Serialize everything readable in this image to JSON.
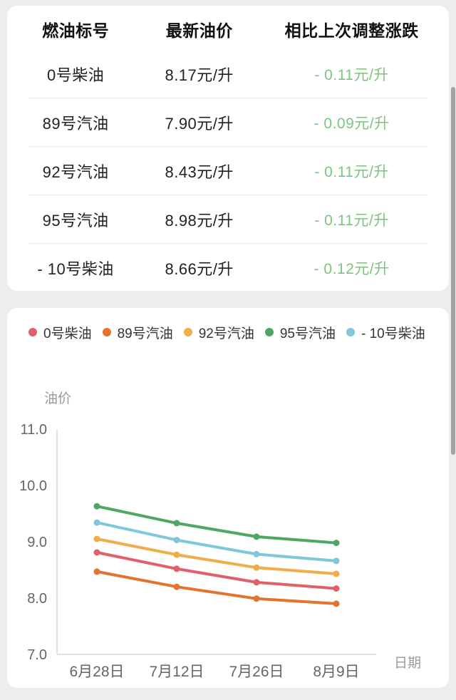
{
  "table": {
    "headers": {
      "grade": "燃油标号",
      "price": "最新油价",
      "change": "相比上次调整涨跌"
    },
    "rows": [
      {
        "grade": "0号柴油",
        "price": "8.17元/升",
        "change": "- 0.11元/升"
      },
      {
        "grade": "89号汽油",
        "price": "7.90元/升",
        "change": "- 0.09元/升"
      },
      {
        "grade": "92号汽油",
        "price": "8.43元/升",
        "change": "- 0.11元/升"
      },
      {
        "grade": "95号汽油",
        "price": "8.98元/升",
        "change": "- 0.11元/升"
      },
      {
        "grade": "- 10号柴油",
        "price": "8.66元/升",
        "change": "- 0.12元/升"
      }
    ],
    "change_color": "#7ec47f"
  },
  "legend": {
    "items": [
      {
        "label": "0号柴油",
        "color": "#e0606c"
      },
      {
        "label": "89号汽油",
        "color": "#e2742f"
      },
      {
        "label": "92号汽油",
        "color": "#efae49"
      },
      {
        "label": "95号汽油",
        "color": "#4ea763"
      },
      {
        "label": "- 10号柴油",
        "color": "#7fc7d9"
      }
    ]
  },
  "chart_data": {
    "type": "line",
    "x": [
      "6月28日",
      "7月12日",
      "7月26日",
      "8月9日"
    ],
    "series": [
      {
        "name": "0号柴油",
        "color": "#e0606c",
        "values": [
          8.81,
          8.52,
          8.28,
          8.17
        ]
      },
      {
        "name": "89号汽油",
        "color": "#e2742f",
        "values": [
          8.47,
          8.2,
          7.99,
          7.9
        ]
      },
      {
        "name": "92号汽油",
        "color": "#efae49",
        "values": [
          9.05,
          8.77,
          8.54,
          8.43
        ]
      },
      {
        "name": "95号汽油",
        "color": "#4ea763",
        "values": [
          9.63,
          9.33,
          9.09,
          8.98
        ]
      },
      {
        "name": "- 10号柴油",
        "color": "#7fc7d9",
        "values": [
          9.34,
          9.03,
          8.78,
          8.66
        ]
      }
    ],
    "ylabel": "油价",
    "xlabel": "日期",
    "ylim": [
      7.0,
      11.0
    ],
    "yticks": [
      "11.0",
      "10.0",
      "9.0",
      "8.0",
      "7.0"
    ],
    "grid": false,
    "legend_position": "top",
    "axis_color": "#d9d9d9",
    "tick_color": "#666666",
    "axis_title_color": "#999999"
  }
}
